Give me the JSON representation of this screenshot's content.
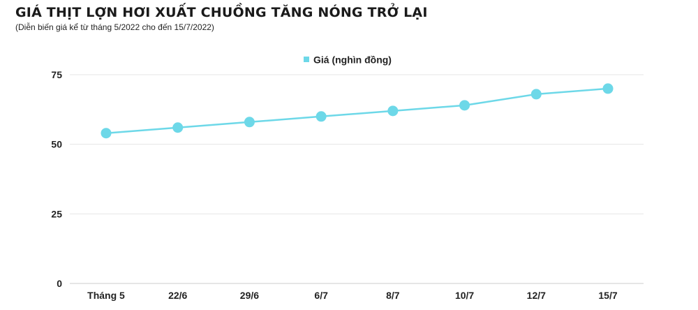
{
  "header": {
    "title": "GIÁ THỊT LỢN HƠI XUẤT CHUỒNG TĂNG NÓNG TRỞ LẠI",
    "subtitle": "(Diễn biến giá kể từ tháng 5/2022 cho đến 15/7/2022)"
  },
  "colors": {
    "series": "#6dd8e8",
    "grid": "#e6e6e6",
    "axis": "#cccccc"
  },
  "chart_data": {
    "type": "line",
    "categories": [
      "Tháng 5",
      "22/6",
      "29/6",
      "6/7",
      "8/7",
      "10/7",
      "12/7",
      "15/7"
    ],
    "series": [
      {
        "name": "Giá (nghìn đồng)",
        "values": [
          54,
          56,
          58,
          60,
          62,
          64,
          68,
          70
        ]
      }
    ],
    "yticks": [
      0,
      25,
      50,
      75
    ],
    "ylim": [
      0,
      75
    ],
    "grid": true,
    "legend": "top-center"
  }
}
